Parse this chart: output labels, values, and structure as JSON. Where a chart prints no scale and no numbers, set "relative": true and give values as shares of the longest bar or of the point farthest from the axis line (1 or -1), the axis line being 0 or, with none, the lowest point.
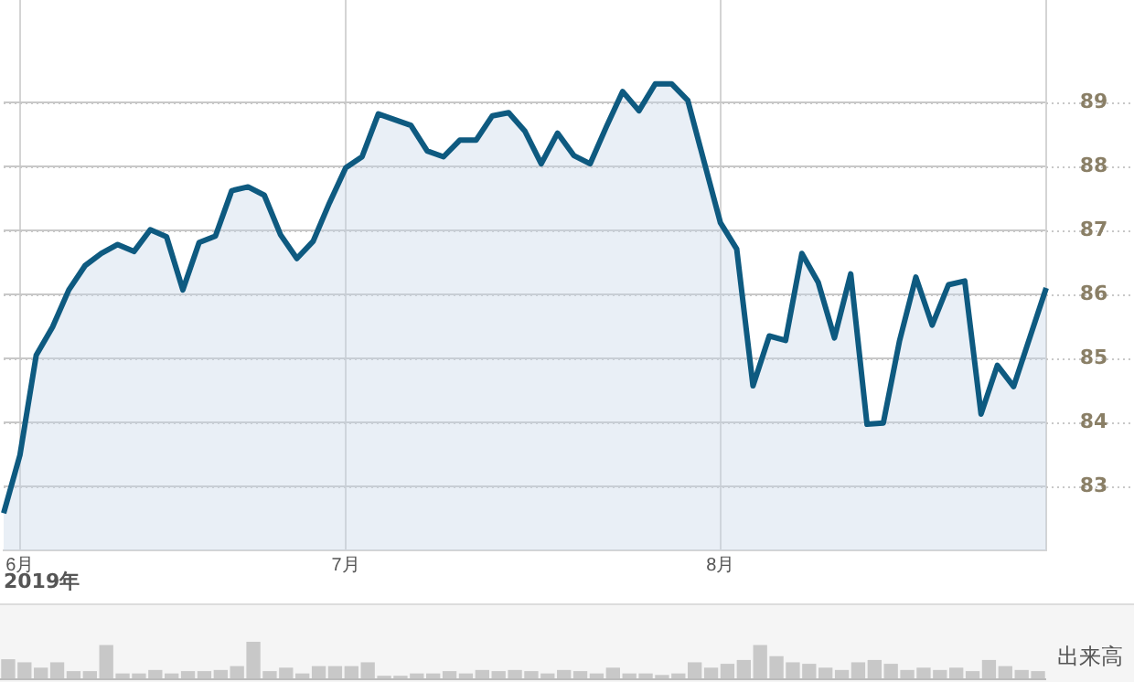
{
  "chart_data": [
    {
      "type": "area",
      "categories": [
        null,
        "6月",
        null,
        null,
        null,
        null,
        null,
        null,
        null,
        null,
        null,
        null,
        null,
        null,
        null,
        null,
        null,
        null,
        null,
        null,
        null,
        "7月",
        null,
        null,
        null,
        null,
        null,
        null,
        null,
        null,
        null,
        null,
        null,
        null,
        null,
        null,
        null,
        null,
        null,
        null,
        null,
        null,
        null,
        null,
        "8月",
        null,
        null,
        null,
        null,
        null,
        null,
        null,
        null,
        null,
        null,
        null,
        null,
        null,
        null,
        null,
        null,
        null,
        null,
        null,
        null
      ],
      "series": [
        {
          "color": "#0e5a80",
          "values": [
            82.58,
            83.49,
            85.05,
            85.49,
            86.07,
            86.45,
            86.64,
            86.78,
            86.67,
            87.01,
            86.9,
            86.07,
            86.81,
            86.91,
            87.62,
            87.68,
            87.55,
            86.93,
            86.56,
            86.83,
            87.43,
            87.98,
            88.15,
            88.82,
            88.73,
            88.64,
            88.24,
            88.15,
            88.41,
            88.41,
            88.79,
            88.84,
            88.55,
            88.04,
            88.52,
            88.17,
            88.04,
            88.62,
            89.17,
            88.87,
            89.29,
            89.29,
            89.03,
            88.07,
            87.12,
            86.71,
            84.57,
            85.35,
            85.28,
            86.64,
            86.19,
            85.32,
            86.32,
            83.97,
            83.99,
            85.28,
            86.27,
            85.52,
            86.15,
            86.21,
            84.13,
            84.89,
            84.56,
            85.33,
            86.1
          ]
        }
      ],
      "ylim": [
        82,
        90.6
      ],
      "yticks": [
        83,
        84,
        85,
        86,
        87,
        88,
        89
      ],
      "grid": true,
      "legend": false,
      "marker": "none",
      "annotations": [
        "2019年"
      ]
    },
    {
      "type": "bar",
      "ylabel": "出来高",
      "relative": true,
      "color": "#c8c8c8",
      "legend": false,
      "grid": false,
      "categories": [
        null,
        null,
        null,
        null,
        null,
        null,
        null,
        null,
        null,
        null,
        null,
        null,
        null,
        null,
        null,
        null,
        null,
        null,
        null,
        null,
        null,
        null,
        null,
        null,
        null,
        null,
        null,
        null,
        null,
        null,
        null,
        null,
        null,
        null,
        null,
        null,
        null,
        null,
        null,
        null,
        null,
        null,
        null,
        null,
        null,
        null,
        null,
        null,
        null,
        null,
        null,
        null,
        null,
        null,
        null,
        null,
        null,
        null,
        null,
        null,
        null,
        null,
        null,
        null
      ],
      "values": [
        0.53,
        0.45,
        0.31,
        0.45,
        0.22,
        0.22,
        0.9,
        0.16,
        0.16,
        0.25,
        0.16,
        0.22,
        0.22,
        0.25,
        0.35,
        1,
        0.22,
        0.31,
        0.16,
        0.35,
        0.35,
        0.35,
        0.45,
        0.1,
        0.1,
        0.16,
        0.16,
        0.22,
        0.16,
        0.25,
        0.22,
        0.25,
        0.22,
        0.16,
        0.25,
        0.22,
        0.16,
        0.31,
        0.16,
        0.16,
        0.12,
        0.16,
        0.45,
        0.31,
        0.41,
        0.51,
        0.9,
        0.61,
        0.45,
        0.41,
        0.31,
        0.25,
        0.45,
        0.51,
        0.41,
        0.25,
        0.31,
        0.25,
        0.31,
        0.22,
        0.51,
        0.35,
        0.25,
        0.22
      ]
    }
  ]
}
